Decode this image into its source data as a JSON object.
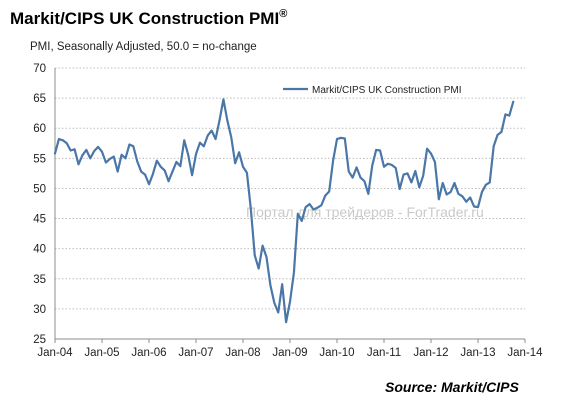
{
  "chart_data": {
    "type": "line",
    "title": "Markit/CIPS UK Construction PMI",
    "title_mark": "®",
    "subtitle": "PMI, Seasonally Adjusted, 50.0 = no-change",
    "source": "Source: Markit/CIPS",
    "watermark": "Портал для трейдеров - ForTrader.ru",
    "legend_position": "top-right",
    "grid": true,
    "ylim": [
      25,
      70
    ],
    "y_ticks": [
      "70",
      "65",
      "60",
      "55",
      "50",
      "45",
      "40",
      "35",
      "30",
      "25"
    ],
    "x_tick_labels": [
      "Jan-04",
      "Jan-05",
      "Jan-06",
      "Jan-07",
      "Jan-08",
      "Jan-09",
      "Jan-10",
      "Jan-11",
      "Jan-12",
      "Jan-13",
      "Jan-14"
    ],
    "x_start": "Jan-04",
    "series": [
      {
        "name": "Markit/CIPS UK Construction PMI",
        "color": "#4a77a8",
        "values": [
          55.8,
          58.2,
          58.0,
          57.5,
          56.3,
          56.5,
          54.0,
          55.5,
          56.4,
          55.0,
          56.2,
          56.9,
          56.1,
          54.3,
          54.9,
          55.3,
          52.8,
          55.6,
          55.0,
          57.3,
          57.0,
          54.5,
          52.8,
          52.3,
          50.7,
          52.4,
          54.6,
          53.6,
          53.0,
          51.2,
          52.8,
          54.4,
          53.7,
          58.0,
          55.6,
          52.2,
          55.7,
          57.6,
          57.0,
          58.8,
          59.6,
          58.2,
          61.3,
          64.8,
          61.3,
          58.5,
          54.2,
          56.0,
          53.6,
          52.6,
          46.6,
          38.9,
          36.7,
          40.5,
          38.6,
          33.9,
          31.0,
          29.4,
          34.1,
          27.8,
          31.2,
          36.0,
          45.8,
          44.6,
          46.9,
          47.4,
          46.5,
          46.8,
          47.2,
          48.8,
          49.5,
          54.6,
          58.2,
          58.4,
          58.3,
          52.8,
          51.8,
          53.5,
          51.8,
          51.2,
          49.1,
          53.8,
          56.4,
          56.3,
          53.6,
          54.1,
          53.9,
          53.4,
          49.9,
          52.3,
          52.5,
          51.0,
          52.9,
          50.2,
          52.1,
          56.6,
          55.8,
          54.4,
          48.2,
          50.9,
          49.0,
          49.4,
          50.9,
          49.1,
          48.7,
          47.8,
          48.5,
          47.0,
          46.9,
          49.4,
          50.6,
          51.0,
          57.0,
          58.9,
          59.4,
          62.3,
          62.1,
          64.4
        ]
      }
    ]
  }
}
